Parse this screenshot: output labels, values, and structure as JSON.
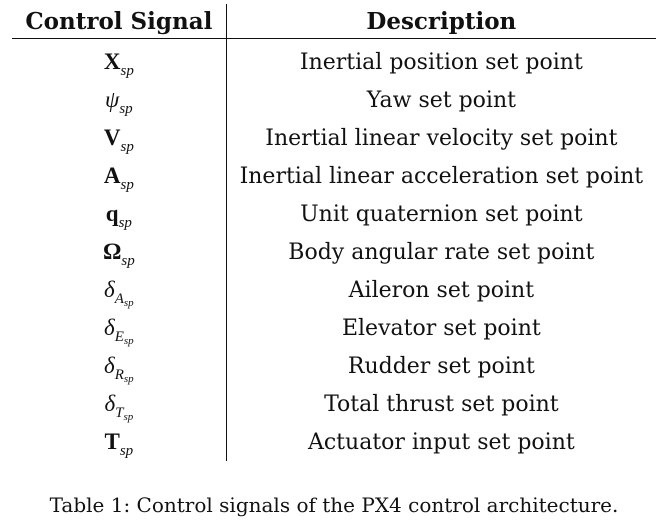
{
  "table": {
    "headers": {
      "signal": "Control Signal",
      "description": "Description"
    },
    "rows": [
      {
        "symbol": "X",
        "style": "bold",
        "sub": "sp",
        "subsub": "",
        "description": "Inertial position set point"
      },
      {
        "symbol": "ψ",
        "style": "italic",
        "sub": "sp",
        "subsub": "",
        "description": "Yaw set point"
      },
      {
        "symbol": "V",
        "style": "bold",
        "sub": "sp",
        "subsub": "",
        "description": "Inertial linear velocity set point"
      },
      {
        "symbol": "A",
        "style": "bold",
        "sub": "sp",
        "subsub": "",
        "description": "Inertial linear acceleration set point"
      },
      {
        "symbol": "q",
        "style": "bold",
        "sub": "sp",
        "subsub": "",
        "description": "Unit quaternion set point"
      },
      {
        "symbol": "Ω",
        "style": "bold",
        "sub": "sp",
        "subsub": "",
        "description": "Body angular rate set point"
      },
      {
        "symbol": "δ",
        "style": "italic",
        "sub": "A",
        "subsub": "sp",
        "description": "Aileron set point"
      },
      {
        "symbol": "δ",
        "style": "italic",
        "sub": "E",
        "subsub": "sp",
        "description": "Elevator set point"
      },
      {
        "symbol": "δ",
        "style": "italic",
        "sub": "R",
        "subsub": "sp",
        "description": "Rudder set point"
      },
      {
        "symbol": "δ",
        "style": "italic",
        "sub": "T",
        "subsub": "sp",
        "description": "Total thrust set point"
      },
      {
        "symbol": "T",
        "style": "bold",
        "sub": "sp",
        "subsub": "",
        "description": "Actuator input set point"
      }
    ]
  },
  "caption": "Table 1: Control signals of the PX4 control architecture."
}
